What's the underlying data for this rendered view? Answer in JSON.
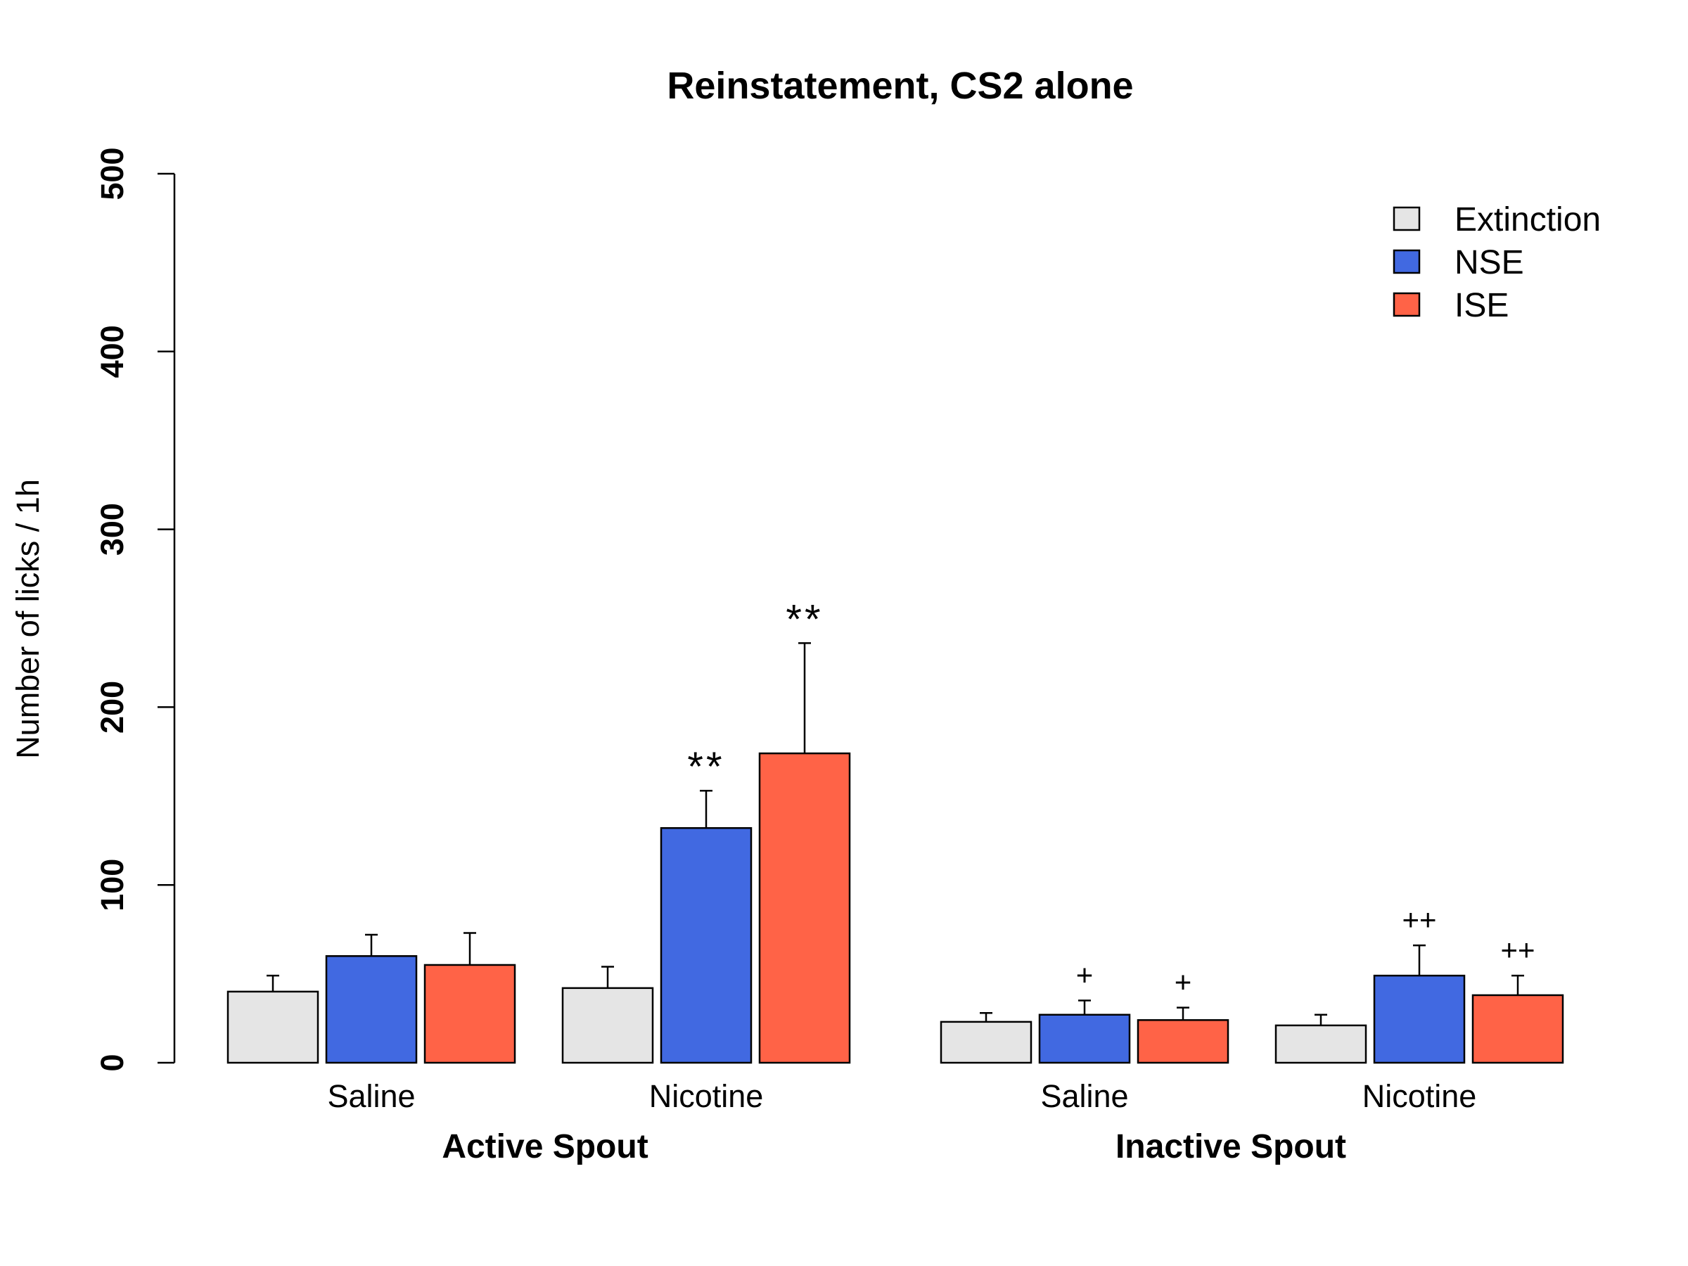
{
  "chart_data": {
    "type": "bar",
    "title": "Reinstatement, CS2 alone",
    "ylabel": "Number of licks / 1h",
    "xlabel": "",
    "ylim": [
      0,
      500
    ],
    "yticks": [
      "0",
      "100",
      "200",
      "300",
      "400",
      "500"
    ],
    "grid": false,
    "legend_position": "top-right",
    "groups": [
      {
        "label": "Active Spout",
        "categories": [
          {
            "label": "Saline",
            "bars": [
              {
                "series": "Extinction",
                "value": 40,
                "error": 9,
                "annotation": ""
              },
              {
                "series": "NSE",
                "value": 60,
                "error": 12,
                "annotation": ""
              },
              {
                "series": "ISE",
                "value": 55,
                "error": 18,
                "annotation": ""
              }
            ]
          },
          {
            "label": "Nicotine",
            "bars": [
              {
                "series": "Extinction",
                "value": 42,
                "error": 12,
                "annotation": ""
              },
              {
                "series": "NSE",
                "value": 132,
                "error": 21,
                "annotation": "**"
              },
              {
                "series": "ISE",
                "value": 174,
                "error": 62,
                "annotation": "**"
              }
            ]
          }
        ]
      },
      {
        "label": "Inactive Spout",
        "categories": [
          {
            "label": "Saline",
            "bars": [
              {
                "series": "Extinction",
                "value": 23,
                "error": 5,
                "annotation": ""
              },
              {
                "series": "NSE",
                "value": 27,
                "error": 8,
                "annotation": "+"
              },
              {
                "series": "ISE",
                "value": 24,
                "error": 7,
                "annotation": "+"
              }
            ]
          },
          {
            "label": "Nicotine",
            "bars": [
              {
                "series": "Extinction",
                "value": 21,
                "error": 6,
                "annotation": ""
              },
              {
                "series": "NSE",
                "value": 49,
                "error": 17,
                "annotation": "++"
              },
              {
                "series": "ISE",
                "value": 38,
                "error": 11,
                "annotation": "++"
              }
            ]
          }
        ]
      }
    ],
    "series": [
      {
        "name": "Extinction",
        "color": "#e5e5e5"
      },
      {
        "name": "NSE",
        "color": "#4169e1"
      },
      {
        "name": "ISE",
        "color": "#ff6347"
      }
    ]
  }
}
